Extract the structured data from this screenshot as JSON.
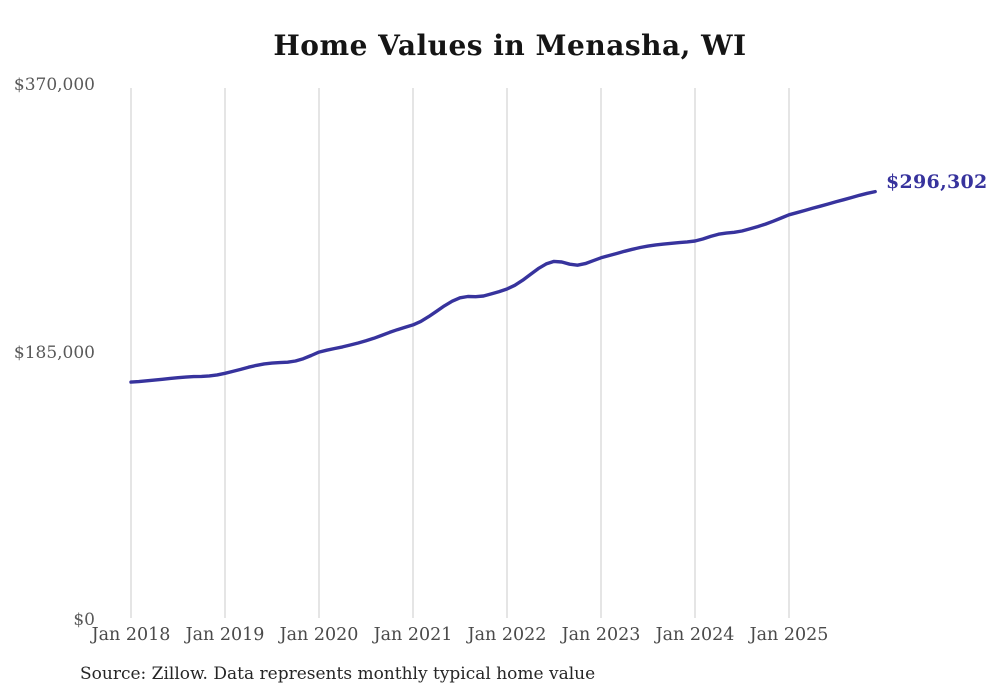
{
  "chart_data": {
    "type": "line",
    "title": "Home Values in Menasha, WI",
    "source_note": "Source: Zillow. Data represents monthly typical home value",
    "end_label": "$296,302",
    "last_value": 296302,
    "line_color": "#37339d",
    "grid_color": "#cbcbcb",
    "ylim": [
      0,
      370000
    ],
    "y_ticks": [
      {
        "label": "$370,000",
        "value": 370000
      },
      {
        "label": "$185,000",
        "value": 185000
      },
      {
        "label": "$0",
        "value": 0
      }
    ],
    "x_tick_labels": [
      "Jan 2018",
      "Jan 2019",
      "Jan 2020",
      "Jan 2021",
      "Jan 2022",
      "Jan 2023",
      "Jan 2024",
      "Jan 2025"
    ],
    "x_start_month": "2018-01",
    "x_end_month": "2025-12",
    "cadence": "monthly",
    "legend": "none",
    "grid": "vertical-only",
    "values": [
      164500,
      164900,
      165400,
      165900,
      166500,
      167100,
      167600,
      168000,
      168300,
      168500,
      168800,
      169500,
      170600,
      171900,
      173300,
      174800,
      176100,
      177100,
      177700,
      178000,
      178300,
      179100,
      180700,
      182900,
      185300,
      186600,
      187800,
      188900,
      190200,
      191600,
      193100,
      194800,
      196800,
      198900,
      200800,
      202500,
      204100,
      206500,
      209800,
      213500,
      217200,
      220500,
      222800,
      223700,
      223600,
      224100,
      225500,
      227100,
      228900,
      231500,
      235000,
      239000,
      243000,
      246300,
      248000,
      247600,
      246100,
      245400,
      246500,
      248500,
      250500,
      252000,
      253500,
      255000,
      256400,
      257600,
      258600,
      259400,
      260000,
      260500,
      261000,
      261500,
      262100,
      263500,
      265300,
      266800,
      267600,
      268100,
      269000,
      270500,
      272100,
      273800,
      275800,
      278000,
      280200,
      281700,
      283200,
      284700,
      286200,
      287700,
      289200,
      290700,
      292200,
      293700,
      295100,
      296302
    ]
  }
}
